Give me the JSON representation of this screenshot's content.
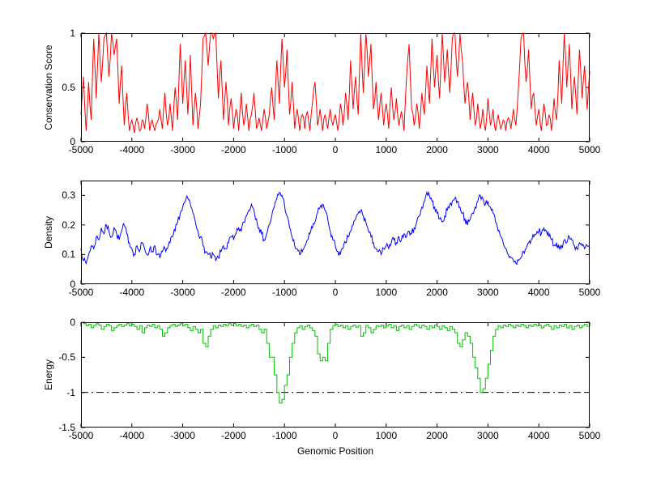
{
  "figure": {
    "background": "#ffffff"
  },
  "chart_data": [
    {
      "type": "line",
      "title": "",
      "ylabel": "Conservation Score",
      "xlabel": "",
      "xlim": [
        -5000,
        5000
      ],
      "ylim": [
        0,
        1
      ],
      "xticks": [
        -5000,
        -4000,
        -3000,
        -2000,
        -1000,
        0,
        1000,
        2000,
        3000,
        4000,
        5000
      ],
      "yticks": [
        0,
        0.5,
        1
      ],
      "grid": false,
      "legend": "none",
      "series": [
        {
          "name": "conservation-score",
          "color": "#ff0000",
          "x0": -5000,
          "dx": 50,
          "jitter": 0.04,
          "subdivide": 2,
          "seed": 3,
          "y": [
            0.25,
            0.6,
            0.1,
            0.55,
            0.2,
            0.95,
            0.4,
            1,
            0.55,
            0.95,
            1,
            0.6,
            1,
            0.8,
            0.95,
            0.35,
            0.7,
            0.15,
            0.45,
            0.1,
            0.2,
            0.08,
            0.22,
            0.1,
            0.2,
            0.12,
            0.35,
            0.1,
            0.2,
            0.1,
            0.18,
            0.3,
            0.12,
            0.45,
            0.15,
            0.35,
            0.1,
            0.5,
            0.2,
            0.9,
            0.35,
            0.75,
            0.25,
            0.8,
            0.15,
            0.45,
            0.12,
            0.35,
            0.95,
            1,
            0.7,
            1,
            0.95,
            1,
            0.4,
            0.75,
            0.2,
            0.55,
            0.15,
            0.4,
            0.12,
            0.3,
            0.1,
            0.45,
            0.15,
            0.35,
            0.1,
            0.25,
            0.45,
            0.12,
            0.22,
            0.1,
            0.3,
            0.12,
            0.25,
            0.5,
            0.2,
            0.75,
            0.35,
            0.95,
            0.5,
            0.85,
            0.25,
            0.55,
            0.12,
            0.3,
            0.1,
            0.25,
            0.12,
            0.28,
            0.1,
            0.35,
            0.55,
            0.15,
            0.3,
            0.1,
            0.25,
            0.12,
            0.3,
            0.15,
            0.25,
            0.1,
            0.35,
            0.15,
            0.45,
            0.2,
            0.75,
            0.3,
            0.6,
            0.25,
            1,
            0.45,
            1,
            0.6,
            0.9,
            0.3,
            0.55,
            0.2,
            0.45,
            0.15,
            0.35,
            0.12,
            0.5,
            0.2,
            0.4,
            0.15,
            0.28,
            0.1,
            0.6,
            0.9,
            0.3,
            0.15,
            0.35,
            0.12,
            0.45,
            0.25,
            0.7,
            0.35,
            0.95,
            0.5,
            0.8,
            0.4,
            1,
            0.55,
            0.85,
            0.45,
            0.95,
            1,
            0.6,
            1,
            0.75,
            0.35,
            0.55,
            0.2,
            0.45,
            0.15,
            0.35,
            0.12,
            0.3,
            0.1,
            0.4,
            0.15,
            0.3,
            0.1,
            0.25,
            0.12,
            0.2,
            0.1,
            0.22,
            0.12,
            0.3,
            0.15,
            0.5,
            0.95,
            1,
            0.55,
            0.85,
            0.3,
            0.45,
            0.15,
            0.3,
            0.1,
            0.35,
            0.15,
            0.25,
            0.1,
            0.4,
            0.2,
            0.75,
            0.35,
            1,
            0.5,
            0.9,
            0.3,
            0.6,
            0.25,
            0.85,
            0.4,
            0.7,
            0.3,
            0.65
          ]
        }
      ]
    },
    {
      "type": "line",
      "title": "",
      "ylabel": "Density",
      "xlabel": "",
      "xlim": [
        -5000,
        5000
      ],
      "ylim": [
        0,
        0.35
      ],
      "xticks": [
        -5000,
        -4000,
        -3000,
        -2000,
        -1000,
        0,
        1000,
        2000,
        3000,
        4000,
        5000
      ],
      "yticks": [
        0,
        0.1,
        0.2,
        0.3
      ],
      "grid": false,
      "legend": "none",
      "series": [
        {
          "name": "density",
          "color": "#0000ff",
          "x0": -5000,
          "dx": 50,
          "jitter": 0.012,
          "subdivide": 3,
          "seed": 7,
          "y": [
            0.12,
            0.08,
            0.07,
            0.1,
            0.13,
            0.12,
            0.16,
            0.15,
            0.19,
            0.17,
            0.2,
            0.18,
            0.16,
            0.19,
            0.17,
            0.15,
            0.18,
            0.2,
            0.17,
            0.14,
            0.12,
            0.1,
            0.13,
            0.11,
            0.14,
            0.12,
            0.1,
            0.12,
            0.11,
            0.13,
            0.1,
            0.09,
            0.11,
            0.12,
            0.12,
            0.14,
            0.16,
            0.18,
            0.21,
            0.24,
            0.26,
            0.28,
            0.29,
            0.27,
            0.24,
            0.21,
            0.18,
            0.16,
            0.13,
            0.11,
            0.1,
            0.09,
            0.1,
            0.08,
            0.09,
            0.11,
            0.13,
            0.12,
            0.14,
            0.16,
            0.15,
            0.17,
            0.19,
            0.18,
            0.21,
            0.23,
            0.25,
            0.27,
            0.25,
            0.22,
            0.19,
            0.17,
            0.15,
            0.17,
            0.2,
            0.23,
            0.26,
            0.29,
            0.31,
            0.3,
            0.27,
            0.23,
            0.19,
            0.16,
            0.13,
            0.12,
            0.1,
            0.11,
            0.13,
            0.15,
            0.17,
            0.19,
            0.21,
            0.24,
            0.26,
            0.27,
            0.25,
            0.22,
            0.18,
            0.15,
            0.13,
            0.11,
            0.1,
            0.12,
            0.14,
            0.16,
            0.18,
            0.2,
            0.22,
            0.24,
            0.25,
            0.23,
            0.21,
            0.18,
            0.16,
            0.14,
            0.12,
            0.11,
            0.1,
            0.12,
            0.13,
            0.12,
            0.14,
            0.15,
            0.14,
            0.16,
            0.15,
            0.17,
            0.16,
            0.18,
            0.17,
            0.19,
            0.21,
            0.23,
            0.26,
            0.28,
            0.31,
            0.3,
            0.28,
            0.26,
            0.24,
            0.22,
            0.21,
            0.23,
            0.25,
            0.27,
            0.28,
            0.29,
            0.28,
            0.26,
            0.24,
            0.22,
            0.2,
            0.22,
            0.24,
            0.26,
            0.28,
            0.3,
            0.29,
            0.27,
            0.28,
            0.26,
            0.24,
            0.21,
            0.18,
            0.16,
            0.14,
            0.12,
            0.1,
            0.09,
            0.08,
            0.07,
            0.08,
            0.09,
            0.11,
            0.12,
            0.14,
            0.15,
            0.16,
            0.17,
            0.18,
            0.17,
            0.19,
            0.18,
            0.16,
            0.15,
            0.13,
            0.14,
            0.12,
            0.13,
            0.15,
            0.14,
            0.16,
            0.15,
            0.13,
            0.12,
            0.14,
            0.13,
            0.12,
            0.13,
            0.12
          ]
        }
      ]
    },
    {
      "type": "line",
      "title": "",
      "ylabel": "Energy",
      "xlabel": "Genomic Position",
      "xlim": [
        -5000,
        5000
      ],
      "ylim": [
        -1.5,
        0
      ],
      "xticks": [
        -5000,
        -4000,
        -3000,
        -2000,
        -1000,
        0,
        1000,
        2000,
        3000,
        4000,
        5000
      ],
      "yticks": [
        -1.5,
        -1,
        -0.5,
        0
      ],
      "grid": false,
      "legend": "none",
      "ref_line": {
        "y": -1,
        "style": "dash-dot",
        "color": "#000000"
      },
      "series": [
        {
          "name": "energy",
          "color": "#00c000",
          "x0": -5000,
          "dx": 50,
          "mode": "step",
          "y": [
            0,
            -0.02,
            -0.05,
            -0.03,
            -0.08,
            -0.05,
            -0.02,
            -0.04,
            -0.1,
            -0.06,
            -0.03,
            -0.05,
            -0.12,
            -0.08,
            -0.05,
            -0.03,
            -0.06,
            -0.04,
            -0.02,
            -0.05,
            -0.03,
            -0.06,
            -0.1,
            -0.05,
            -0.15,
            -0.08,
            -0.04,
            -0.06,
            -0.03,
            -0.08,
            -0.05,
            -0.1,
            -0.2,
            -0.15,
            -0.08,
            -0.05,
            -0.03,
            -0.06,
            -0.04,
            -0.02,
            -0.05,
            -0.03,
            -0.08,
            -0.12,
            -0.06,
            -0.1,
            -0.15,
            -0.1,
            -0.3,
            -0.35,
            -0.2,
            -0.1,
            -0.05,
            -0.08,
            -0.04,
            -0.06,
            -0.03,
            -0.05,
            -0.02,
            -0.04,
            -0.02,
            -0.05,
            -0.03,
            -0.06,
            -0.04,
            -0.08,
            -0.05,
            -0.03,
            -0.06,
            -0.04,
            -0.1,
            -0.15,
            -0.1,
            -0.3,
            -0.5,
            -0.5,
            -0.75,
            -1.0,
            -1.15,
            -1.1,
            -0.9,
            -0.75,
            -0.5,
            -0.3,
            -0.15,
            -0.08,
            -0.05,
            -0.1,
            -0.06,
            -0.04,
            -0.08,
            -0.12,
            -0.2,
            -0.45,
            -0.55,
            -0.5,
            -0.55,
            -0.3,
            -0.1,
            -0.05,
            -0.03,
            -0.06,
            -0.04,
            -0.08,
            -0.05,
            -0.1,
            -0.06,
            -0.04,
            -0.07,
            -0.05,
            -0.2,
            -0.15,
            -0.05,
            -0.08,
            -0.15,
            -0.1,
            -0.05,
            -0.06,
            -0.04,
            -0.08,
            -0.05,
            -0.03,
            -0.08,
            -0.05,
            -0.12,
            -0.06,
            -0.04,
            -0.08,
            -0.05,
            -0.1,
            -0.06,
            -0.03,
            -0.05,
            -0.08,
            -0.04,
            -0.06,
            -0.1,
            -0.05,
            -0.08,
            -0.04,
            -0.06,
            -0.1,
            -0.05,
            -0.08,
            -0.12,
            -0.06,
            -0.1,
            -0.15,
            -0.3,
            -0.35,
            -0.25,
            -0.15,
            -0.2,
            -0.3,
            -0.5,
            -0.65,
            -0.8,
            -1.0,
            -0.95,
            -0.8,
            -0.6,
            -0.4,
            -0.2,
            -0.1,
            -0.05,
            -0.08,
            -0.04,
            -0.06,
            -0.03,
            -0.05,
            -0.08,
            -0.04,
            -0.06,
            -0.03,
            -0.05,
            -0.08,
            -0.04,
            -0.06,
            -0.03,
            -0.05,
            -0.04,
            -0.08,
            -0.05,
            -0.03,
            -0.06,
            -0.1,
            -0.05,
            -0.08,
            -0.04,
            -0.06,
            -0.03,
            -0.08,
            -0.05,
            -0.1,
            -0.06,
            -0.04,
            -0.08,
            -0.05,
            -0.03,
            -0.06,
            -0.04
          ]
        }
      ]
    }
  ]
}
